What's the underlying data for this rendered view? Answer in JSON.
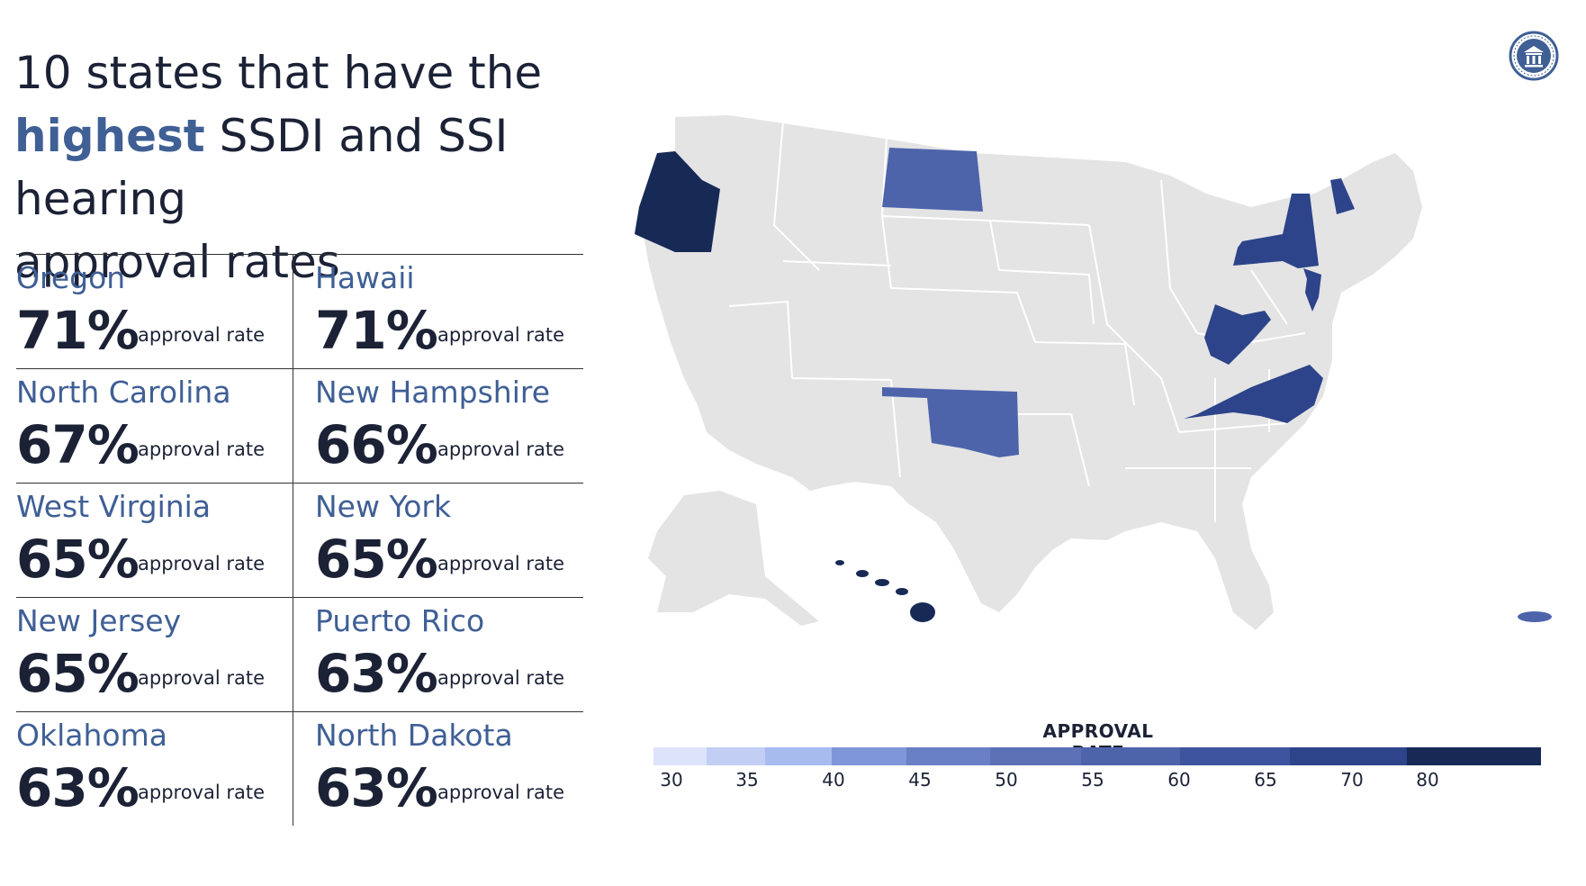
{
  "title": {
    "line1": "10 states that have the",
    "highlight": "highest",
    "rest": " SSDI and SSI hearing",
    "line3": "approval rates"
  },
  "suffix": "approval rate",
  "states": [
    {
      "name": "Oregon",
      "rate": "71%"
    },
    {
      "name": "Hawaii",
      "rate": "71%"
    },
    {
      "name": "North Carolina",
      "rate": "67%"
    },
    {
      "name": "New Hampshire",
      "rate": "66%"
    },
    {
      "name": "West Virginia",
      "rate": "65%"
    },
    {
      "name": "New York",
      "rate": "65%"
    },
    {
      "name": "New Jersey",
      "rate": "65%"
    },
    {
      "name": "Puerto Rico",
      "rate": "63%"
    },
    {
      "name": "Oklahoma",
      "rate": "63%"
    },
    {
      "name": "North Dakota",
      "rate": "63%"
    }
  ],
  "legend": {
    "title": "APPROVAL RATE",
    "ticks": [
      "30",
      "35",
      "40",
      "45",
      "50",
      "55",
      "60",
      "65",
      "70",
      "80"
    ],
    "colors": [
      "#dde3fa",
      "#c3cef5",
      "#a7bbef",
      "#7f96d8",
      "#6a80c6",
      "#5b70b5",
      "#4d64ab",
      "#3d559f",
      "#2d448a",
      "#172a56"
    ]
  },
  "map_colors": {
    "base": "#e4e4e4",
    "oregon": "#172a56",
    "hawaii": "#172a56",
    "north_dakota": "#4d64ab",
    "oklahoma": "#4d64ab",
    "new_york": "#2d448a",
    "new_hampshire": "#2d448a",
    "new_jersey": "#2d448a",
    "west_virginia": "#2d448a",
    "north_carolina": "#2d448a",
    "puerto_rico": "#4d64ab"
  }
}
